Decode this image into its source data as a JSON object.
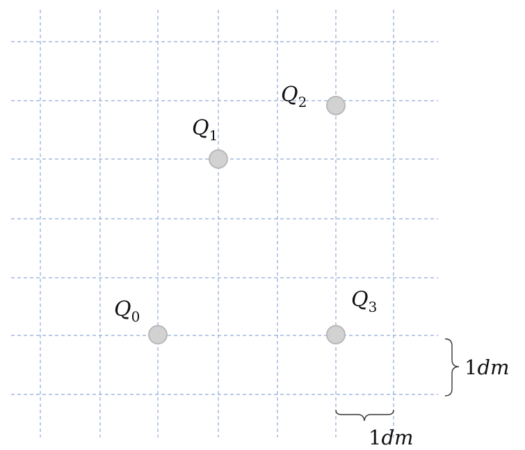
{
  "charges": [
    {
      "name": "Q",
      "subscript": "0",
      "grid_col": 2,
      "grid_row": 6
    },
    {
      "name": "Q",
      "subscript": "1",
      "grid_col": 3,
      "grid_row": 3
    },
    {
      "name": "Q",
      "subscript": "2",
      "grid_col": 5,
      "grid_row": 2
    },
    {
      "name": "Q",
      "subscript": "3",
      "grid_col": 5,
      "grid_row": 6
    }
  ],
  "scale_vertical": {
    "number": "1",
    "unit": "dm"
  },
  "scale_horizontal": {
    "number": "1",
    "unit": "dm"
  },
  "colors": {
    "grid": "#8ea9d6",
    "charge_fill": "#d2d2d2",
    "charge_stroke": "#b8b8b8"
  }
}
